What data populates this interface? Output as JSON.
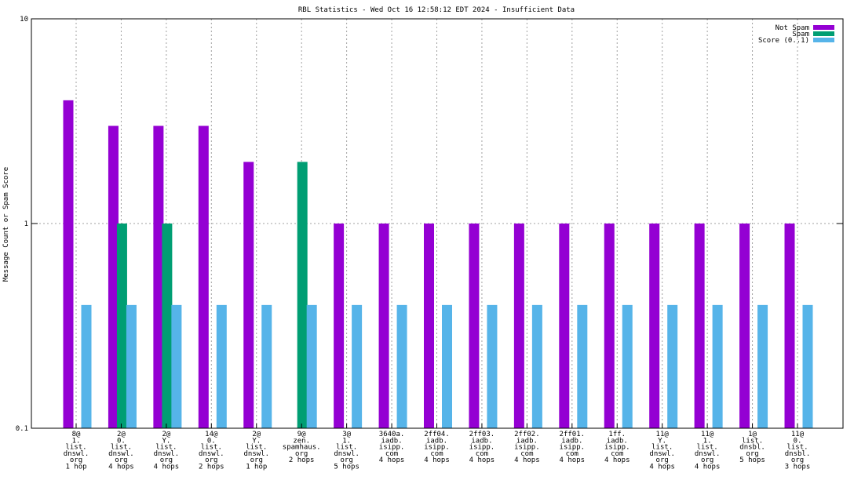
{
  "chart_data": {
    "type": "bar",
    "title": "RBL Statistics - Wed Oct 16 12:58:12 EDT 2024 - Insufficient Data",
    "ylabel": "Message Count or Spam Score",
    "xlabel": "",
    "yscale": "log",
    "ylim": [
      0.1,
      10
    ],
    "y_ticks": [
      "0.1",
      "1",
      "10"
    ],
    "grid": true,
    "legend_position": "top-right",
    "categories": [
      [
        "8@",
        "1.",
        "list.",
        "dnswl.",
        "org",
        "1 hop"
      ],
      [
        "2@",
        "0.",
        "list.",
        "dnswl.",
        "org",
        "4 hops"
      ],
      [
        "2@",
        "Y.",
        "list.",
        "dnswl.",
        "org",
        "4 hops"
      ],
      [
        "14@",
        "0.",
        "list.",
        "dnswl.",
        "org",
        "2 hops"
      ],
      [
        "2@",
        "Y.",
        "list.",
        "dnswl.",
        "org",
        "1 hop"
      ],
      [
        "9@",
        "zen.",
        "spamhaus.",
        "org",
        "2 hops"
      ],
      [
        "3@",
        "1.",
        "list.",
        "dnswl.",
        "org",
        "5 hops"
      ],
      [
        "3640a.",
        "iadb.",
        "isipp.",
        "com",
        "4 hops"
      ],
      [
        "2ff04.",
        "iadb.",
        "isipp.",
        "com",
        "4 hops"
      ],
      [
        "2ff03.",
        "iadb.",
        "isipp.",
        "com",
        "4 hops"
      ],
      [
        "2ff02.",
        "iadb.",
        "isipp.",
        "com",
        "4 hops"
      ],
      [
        "2ff01.",
        "iadb.",
        "isipp.",
        "com",
        "4 hops"
      ],
      [
        "1ff.",
        "iadb.",
        "isipp.",
        "com",
        "4 hops"
      ],
      [
        "11@",
        "Y.",
        "list.",
        "dnswl.",
        "org",
        "4 hops"
      ],
      [
        "11@",
        "1.",
        "list.",
        "dnswl.",
        "org",
        "4 hops"
      ],
      [
        "1@",
        "list.",
        "dnsbl.",
        "org",
        "5 hops"
      ],
      [
        "11@",
        "0.",
        "list.",
        "dnsbl.",
        "org",
        "3 hops"
      ]
    ],
    "series": [
      {
        "name": "Not Spam",
        "color": "#9400d3",
        "values": [
          4,
          3,
          3,
          3,
          2,
          0,
          1,
          1,
          1,
          1,
          1,
          1,
          1,
          1,
          1,
          1,
          1
        ]
      },
      {
        "name": "Spam",
        "color": "#009e73",
        "values": [
          0,
          1,
          1,
          0,
          0,
          2,
          0,
          0,
          0,
          0,
          0,
          0,
          0,
          0,
          0,
          0,
          0
        ]
      },
      {
        "name": "Score (0..1)",
        "color": "#56b4e9",
        "values": [
          0.4,
          0.4,
          0.4,
          0.4,
          0.4,
          0.4,
          0.4,
          0.4,
          0.4,
          0.4,
          0.4,
          0.4,
          0.4,
          0.4,
          0.4,
          0.4,
          0.4
        ]
      }
    ]
  }
}
